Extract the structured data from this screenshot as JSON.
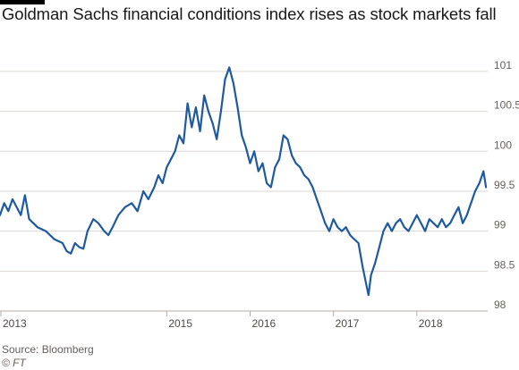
{
  "title": "Goldman Sachs financial conditions index rises as stock markets fall",
  "source": "Source: Bloomberg",
  "credit": "© FT",
  "colors": {
    "line": "#1f5aa0",
    "grid": "#dcd6d2",
    "topbar": "#000000"
  },
  "chart_data": {
    "type": "line",
    "title": "Goldman Sachs financial conditions index rises as stock markets fall",
    "xlabel": "",
    "ylabel": "",
    "x_ticks": [
      "2013",
      "2015",
      "2016",
      "2017",
      "2018"
    ],
    "y_ticks": [
      "98",
      "98.5",
      "99",
      "99.5",
      "100",
      "100.5",
      "101"
    ],
    "xlim": [
      2013.0,
      2018.85
    ],
    "ylim": [
      98,
      101.2
    ],
    "grid": "horizontal",
    "series": [
      {
        "values": [
          [
            2013.0,
            99.2
          ],
          [
            2013.05,
            99.35
          ],
          [
            2013.1,
            99.25
          ],
          [
            2013.15,
            99.4
          ],
          [
            2013.2,
            99.3
          ],
          [
            2013.25,
            99.2
          ],
          [
            2013.3,
            99.45
          ],
          [
            2013.35,
            99.15
          ],
          [
            2013.45,
            99.05
          ],
          [
            2013.55,
            99.0
          ],
          [
            2013.65,
            98.9
          ],
          [
            2013.75,
            98.85
          ],
          [
            2013.8,
            98.75
          ],
          [
            2013.85,
            98.72
          ],
          [
            2013.9,
            98.85
          ],
          [
            2013.95,
            98.8
          ],
          [
            2014.0,
            98.78
          ],
          [
            2014.05,
            99.0
          ],
          [
            2014.12,
            99.15
          ],
          [
            2014.18,
            99.1
          ],
          [
            2014.25,
            99.0
          ],
          [
            2014.3,
            98.95
          ],
          [
            2014.35,
            99.05
          ],
          [
            2014.42,
            99.2
          ],
          [
            2014.5,
            99.3
          ],
          [
            2014.58,
            99.35
          ],
          [
            2014.65,
            99.25
          ],
          [
            2014.72,
            99.5
          ],
          [
            2014.78,
            99.4
          ],
          [
            2014.85,
            99.55
          ],
          [
            2014.9,
            99.7
          ],
          [
            2014.95,
            99.6
          ],
          [
            2015.0,
            99.8
          ],
          [
            2015.05,
            99.9
          ],
          [
            2015.1,
            100.0
          ],
          [
            2015.15,
            100.2
          ],
          [
            2015.2,
            100.1
          ],
          [
            2015.25,
            100.6
          ],
          [
            2015.3,
            100.3
          ],
          [
            2015.35,
            100.55
          ],
          [
            2015.4,
            100.25
          ],
          [
            2015.45,
            100.7
          ],
          [
            2015.5,
            100.5
          ],
          [
            2015.55,
            100.35
          ],
          [
            2015.6,
            100.15
          ],
          [
            2015.65,
            100.5
          ],
          [
            2015.7,
            100.9
          ],
          [
            2015.75,
            101.05
          ],
          [
            2015.8,
            100.85
          ],
          [
            2015.85,
            100.55
          ],
          [
            2015.9,
            100.2
          ],
          [
            2015.95,
            100.05
          ],
          [
            2016.0,
            99.85
          ],
          [
            2016.05,
            100.0
          ],
          [
            2016.1,
            99.75
          ],
          [
            2016.15,
            99.85
          ],
          [
            2016.2,
            99.6
          ],
          [
            2016.25,
            99.55
          ],
          [
            2016.3,
            99.8
          ],
          [
            2016.35,
            99.9
          ],
          [
            2016.4,
            100.2
          ],
          [
            2016.45,
            100.15
          ],
          [
            2016.5,
            99.95
          ],
          [
            2016.55,
            99.85
          ],
          [
            2016.6,
            99.8
          ],
          [
            2016.65,
            99.7
          ],
          [
            2016.7,
            99.65
          ],
          [
            2016.75,
            99.55
          ],
          [
            2016.8,
            99.4
          ],
          [
            2016.85,
            99.25
          ],
          [
            2016.9,
            99.1
          ],
          [
            2016.95,
            99.0
          ],
          [
            2017.0,
            99.15
          ],
          [
            2017.05,
            99.05
          ],
          [
            2017.1,
            99.0
          ],
          [
            2017.15,
            99.05
          ],
          [
            2017.2,
            98.95
          ],
          [
            2017.25,
            98.9
          ],
          [
            2017.3,
            98.85
          ],
          [
            2017.35,
            98.55
          ],
          [
            2017.4,
            98.3
          ],
          [
            2017.42,
            98.2
          ],
          [
            2017.45,
            98.45
          ],
          [
            2017.5,
            98.6
          ],
          [
            2017.55,
            98.8
          ],
          [
            2017.6,
            99.0
          ],
          [
            2017.65,
            99.1
          ],
          [
            2017.7,
            99.0
          ],
          [
            2017.75,
            99.1
          ],
          [
            2017.8,
            99.15
          ],
          [
            2017.85,
            99.05
          ],
          [
            2017.9,
            99.0
          ],
          [
            2017.95,
            99.1
          ],
          [
            2018.0,
            99.2
          ],
          [
            2018.05,
            99.1
          ],
          [
            2018.1,
            99.0
          ],
          [
            2018.15,
            99.15
          ],
          [
            2018.2,
            99.1
          ],
          [
            2018.25,
            99.05
          ],
          [
            2018.3,
            99.15
          ],
          [
            2018.35,
            99.05
          ],
          [
            2018.4,
            99.1
          ],
          [
            2018.45,
            99.2
          ],
          [
            2018.5,
            99.3
          ],
          [
            2018.55,
            99.1
          ],
          [
            2018.6,
            99.2
          ],
          [
            2018.65,
            99.35
          ],
          [
            2018.7,
            99.5
          ],
          [
            2018.75,
            99.6
          ],
          [
            2018.8,
            99.75
          ],
          [
            2018.83,
            99.55
          ]
        ]
      }
    ]
  }
}
